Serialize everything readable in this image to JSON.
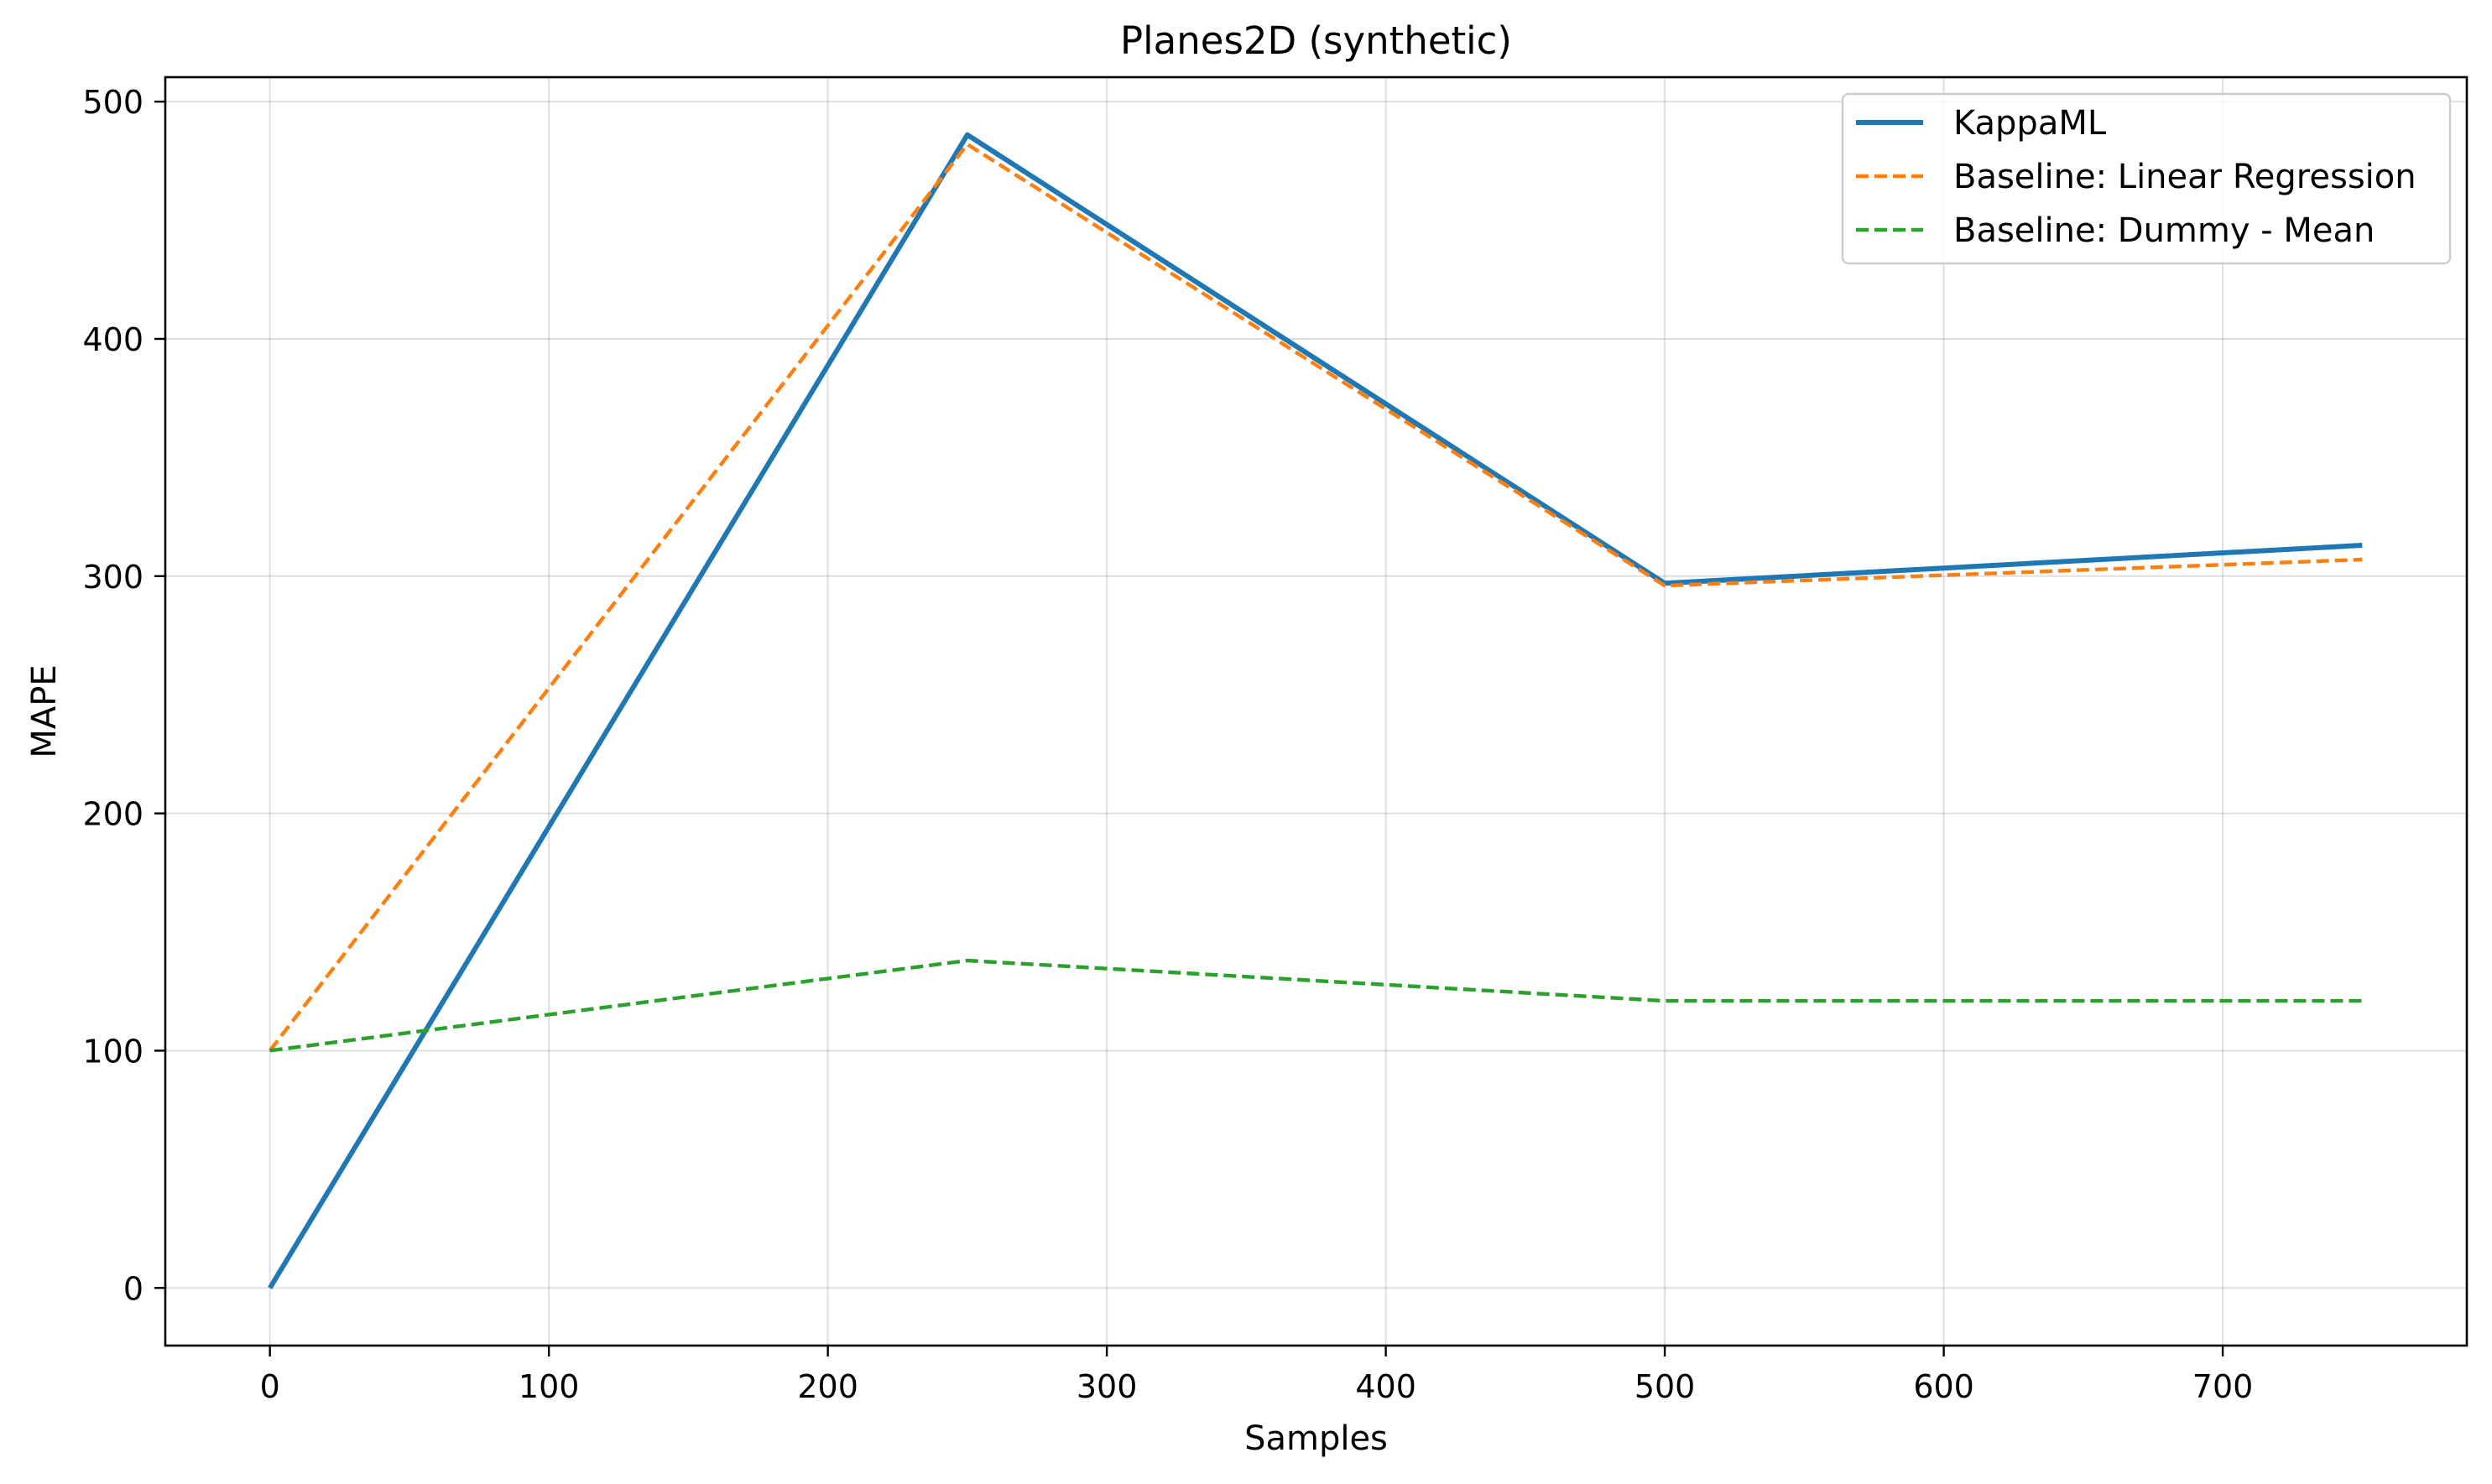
{
  "chart_data": {
    "type": "line",
    "title": "Planes2D (synthetic)",
    "xlabel": "Samples",
    "ylabel": "MAPE",
    "x": [
      0,
      250,
      500,
      750
    ],
    "series": [
      {
        "name": "KappaML",
        "values": [
          0,
          486,
          297,
          313
        ],
        "color": "#1f77b4",
        "style": "solid"
      },
      {
        "name": "Baseline: Linear Regression",
        "values": [
          100,
          482,
          296,
          307
        ],
        "color": "#ff7f0e",
        "style": "dashed"
      },
      {
        "name": "Baseline: Dummy - Mean",
        "values": [
          100,
          138,
          121,
          121
        ],
        "color": "#2ca02c",
        "style": "dashed"
      }
    ],
    "xlim": [
      -37.5,
      787.5
    ],
    "ylim": [
      -24.3,
      510.3
    ],
    "xticks": [
      0,
      100,
      200,
      300,
      400,
      500,
      600,
      700
    ],
    "yticks": [
      0,
      100,
      200,
      300,
      400,
      500
    ],
    "grid": true,
    "legend_position": "upper right"
  }
}
